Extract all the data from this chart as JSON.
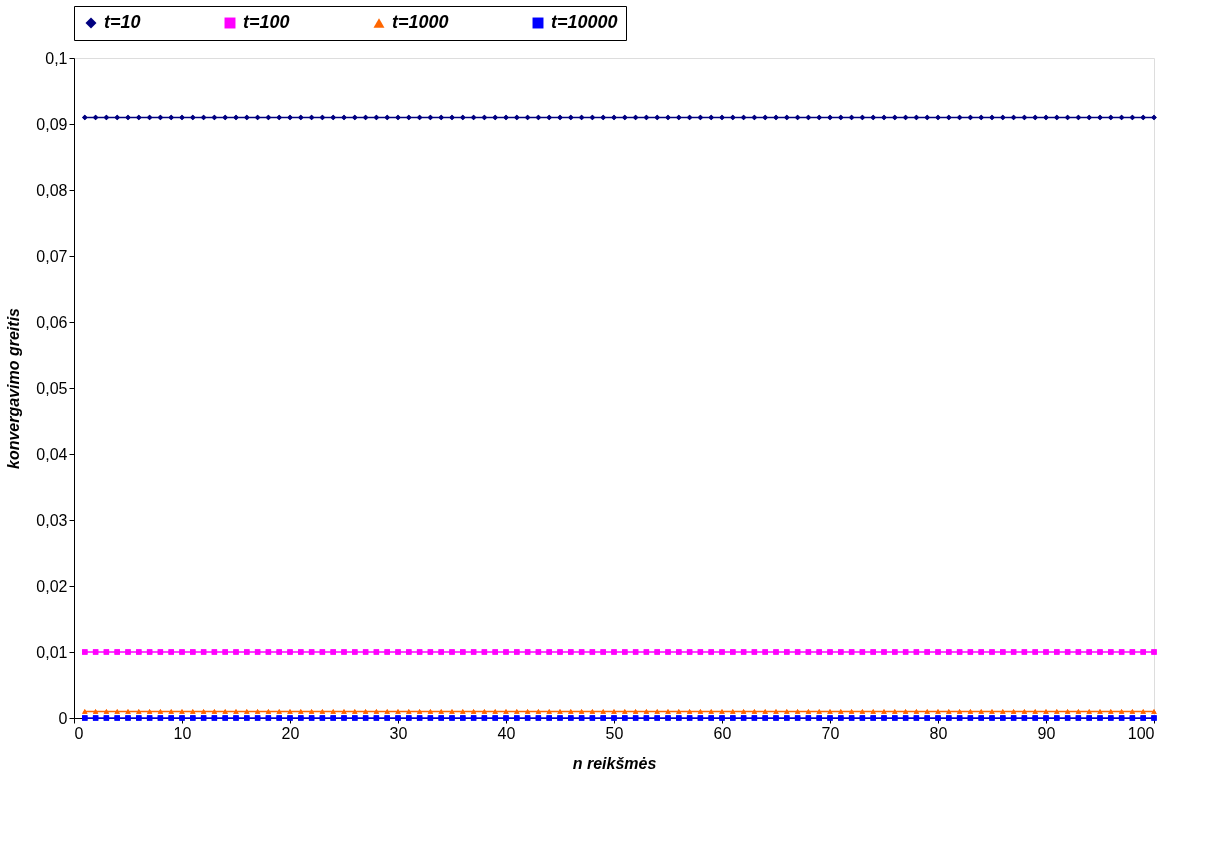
{
  "chart_data": {
    "type": "line",
    "xlabel": "n reikšmės",
    "ylabel": "konvergavimo greitis",
    "x": [
      1,
      2,
      3,
      4,
      5,
      6,
      7,
      8,
      9,
      10,
      11,
      12,
      13,
      14,
      15,
      16,
      17,
      18,
      19,
      20,
      21,
      22,
      23,
      24,
      25,
      26,
      27,
      28,
      29,
      30,
      31,
      32,
      33,
      34,
      35,
      36,
      37,
      38,
      39,
      40,
      41,
      42,
      43,
      44,
      45,
      46,
      47,
      48,
      49,
      50,
      51,
      52,
      53,
      54,
      55,
      56,
      57,
      58,
      59,
      60,
      61,
      62,
      63,
      64,
      65,
      66,
      67,
      68,
      69,
      70,
      71,
      72,
      73,
      74,
      75,
      76,
      77,
      78,
      79,
      80,
      81,
      82,
      83,
      84,
      85,
      86,
      87,
      88,
      89,
      90,
      91,
      92,
      93,
      94,
      95,
      96,
      97,
      98,
      99,
      100
    ],
    "series": [
      {
        "name": "t=10",
        "color": "#000080",
        "marker": "diamond",
        "values": [
          0.091,
          0.091,
          0.091,
          0.091,
          0.091,
          0.091,
          0.091,
          0.091,
          0.091,
          0.091,
          0.091,
          0.091,
          0.091,
          0.091,
          0.091,
          0.091,
          0.091,
          0.091,
          0.091,
          0.091,
          0.091,
          0.091,
          0.091,
          0.091,
          0.091,
          0.091,
          0.091,
          0.091,
          0.091,
          0.091,
          0.091,
          0.091,
          0.091,
          0.091,
          0.091,
          0.091,
          0.091,
          0.091,
          0.091,
          0.091,
          0.091,
          0.091,
          0.091,
          0.091,
          0.091,
          0.091,
          0.091,
          0.091,
          0.091,
          0.091,
          0.091,
          0.091,
          0.091,
          0.091,
          0.091,
          0.091,
          0.091,
          0.091,
          0.091,
          0.091,
          0.091,
          0.091,
          0.091,
          0.091,
          0.091,
          0.091,
          0.091,
          0.091,
          0.091,
          0.091,
          0.091,
          0.091,
          0.091,
          0.091,
          0.091,
          0.091,
          0.091,
          0.091,
          0.091,
          0.091,
          0.091,
          0.091,
          0.091,
          0.091,
          0.091,
          0.091,
          0.091,
          0.091,
          0.091,
          0.091,
          0.091,
          0.091,
          0.091,
          0.091,
          0.091,
          0.091,
          0.091,
          0.091,
          0.091,
          0.091
        ]
      },
      {
        "name": "t=100",
        "color": "#ff00ff",
        "marker": "square",
        "values": [
          0.01,
          0.01,
          0.01,
          0.01,
          0.01,
          0.01,
          0.01,
          0.01,
          0.01,
          0.01,
          0.01,
          0.01,
          0.01,
          0.01,
          0.01,
          0.01,
          0.01,
          0.01,
          0.01,
          0.01,
          0.01,
          0.01,
          0.01,
          0.01,
          0.01,
          0.01,
          0.01,
          0.01,
          0.01,
          0.01,
          0.01,
          0.01,
          0.01,
          0.01,
          0.01,
          0.01,
          0.01,
          0.01,
          0.01,
          0.01,
          0.01,
          0.01,
          0.01,
          0.01,
          0.01,
          0.01,
          0.01,
          0.01,
          0.01,
          0.01,
          0.01,
          0.01,
          0.01,
          0.01,
          0.01,
          0.01,
          0.01,
          0.01,
          0.01,
          0.01,
          0.01,
          0.01,
          0.01,
          0.01,
          0.01,
          0.01,
          0.01,
          0.01,
          0.01,
          0.01,
          0.01,
          0.01,
          0.01,
          0.01,
          0.01,
          0.01,
          0.01,
          0.01,
          0.01,
          0.01,
          0.01,
          0.01,
          0.01,
          0.01,
          0.01,
          0.01,
          0.01,
          0.01,
          0.01,
          0.01,
          0.01,
          0.01,
          0.01,
          0.01,
          0.01,
          0.01,
          0.01,
          0.01,
          0.01,
          0.01
        ]
      },
      {
        "name": "t=1000",
        "color": "#ff6600",
        "marker": "triangle",
        "values": [
          0.001,
          0.001,
          0.001,
          0.001,
          0.001,
          0.001,
          0.001,
          0.001,
          0.001,
          0.001,
          0.001,
          0.001,
          0.001,
          0.001,
          0.001,
          0.001,
          0.001,
          0.001,
          0.001,
          0.001,
          0.001,
          0.001,
          0.001,
          0.001,
          0.001,
          0.001,
          0.001,
          0.001,
          0.001,
          0.001,
          0.001,
          0.001,
          0.001,
          0.001,
          0.001,
          0.001,
          0.001,
          0.001,
          0.001,
          0.001,
          0.001,
          0.001,
          0.001,
          0.001,
          0.001,
          0.001,
          0.001,
          0.001,
          0.001,
          0.001,
          0.001,
          0.001,
          0.001,
          0.001,
          0.001,
          0.001,
          0.001,
          0.001,
          0.001,
          0.001,
          0.001,
          0.001,
          0.001,
          0.001,
          0.001,
          0.001,
          0.001,
          0.001,
          0.001,
          0.001,
          0.001,
          0.001,
          0.001,
          0.001,
          0.001,
          0.001,
          0.001,
          0.001,
          0.001,
          0.001,
          0.001,
          0.001,
          0.001,
          0.001,
          0.001,
          0.001,
          0.001,
          0.001,
          0.001,
          0.001,
          0.001,
          0.001,
          0.001,
          0.001,
          0.001,
          0.001,
          0.001,
          0.001,
          0.001,
          0.001
        ]
      },
      {
        "name": "t=10000",
        "color": "#0000ff",
        "marker": "square",
        "values": [
          0,
          0,
          0,
          0,
          0,
          0,
          0,
          0,
          0,
          0,
          0,
          0,
          0,
          0,
          0,
          0,
          0,
          0,
          0,
          0,
          0,
          0,
          0,
          0,
          0,
          0,
          0,
          0,
          0,
          0,
          0,
          0,
          0,
          0,
          0,
          0,
          0,
          0,
          0,
          0,
          0,
          0,
          0,
          0,
          0,
          0,
          0,
          0,
          0,
          0,
          0,
          0,
          0,
          0,
          0,
          0,
          0,
          0,
          0,
          0,
          0,
          0,
          0,
          0,
          0,
          0,
          0,
          0,
          0,
          0,
          0,
          0,
          0,
          0,
          0,
          0,
          0,
          0,
          0,
          0,
          0,
          0,
          0,
          0,
          0,
          0,
          0,
          0,
          0,
          0,
          0,
          0,
          0,
          0,
          0,
          0,
          0,
          0,
          0,
          0
        ]
      }
    ],
    "xlim": [
      0,
      100
    ],
    "xticks": [
      0,
      10,
      20,
      30,
      40,
      50,
      60,
      70,
      80,
      90,
      100
    ],
    "ylim": [
      0,
      0.1
    ],
    "yticks": [
      0,
      {
        "value": 0.01,
        "label": "0,01"
      },
      {
        "value": 0.02,
        "label": "0,02"
      },
      {
        "value": 0.03,
        "label": "0,03"
      },
      {
        "value": 0.04,
        "label": "0,04"
      },
      {
        "value": 0.05,
        "label": "0,05"
      },
      {
        "value": 0.06,
        "label": "0,06"
      },
      {
        "value": 0.07,
        "label": "0,07"
      },
      {
        "value": 0.08,
        "label": "0,08"
      },
      {
        "value": 0.09,
        "label": "0,09"
      },
      {
        "value": 0.1,
        "label": "0,1"
      }
    ],
    "grid": false,
    "legend": "top",
    "line_style": "solid"
  }
}
